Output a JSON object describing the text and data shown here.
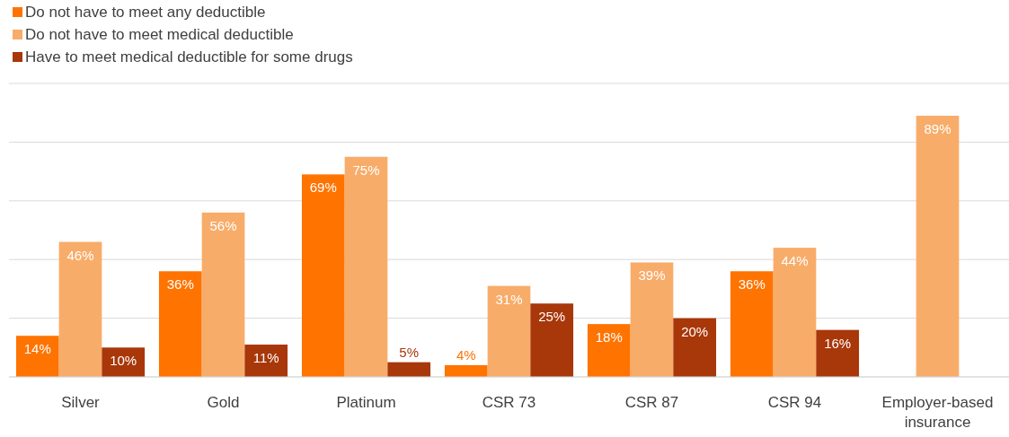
{
  "chart_data": {
    "type": "bar",
    "categories": [
      "Silver",
      "Gold",
      "Platinum",
      "CSR 73",
      "CSR 87",
      "CSR 94",
      "Employer-based insurance"
    ],
    "series": [
      {
        "name": "Do not have to meet any deductible",
        "color": "#ff7300",
        "values": [
          14,
          36,
          69,
          4,
          18,
          36,
          null
        ],
        "value_labels": [
          "14%",
          "36%",
          "69%",
          "4%",
          "18%",
          "36%",
          null
        ]
      },
      {
        "name": "Do not have to meet medical deductible",
        "color": "#f8ac69",
        "values": [
          46,
          56,
          75,
          31,
          39,
          44,
          89
        ],
        "value_labels": [
          "46%",
          "56%",
          "75%",
          "31%",
          "39%",
          "44%",
          "89%"
        ]
      },
      {
        "name": "Have to meet medical deductible for some drugs",
        "color": "#a8370a",
        "values": [
          10,
          11,
          5,
          25,
          20,
          16,
          null
        ],
        "value_labels": [
          "10%",
          "11%",
          "5%",
          "25%",
          "20%",
          "16%",
          null
        ]
      }
    ],
    "ylim": [
      0,
      100
    ],
    "yticks": [
      0,
      20,
      40,
      60,
      80,
      100
    ],
    "grid": "y",
    "tick_labels": "x",
    "legend": "top left"
  }
}
